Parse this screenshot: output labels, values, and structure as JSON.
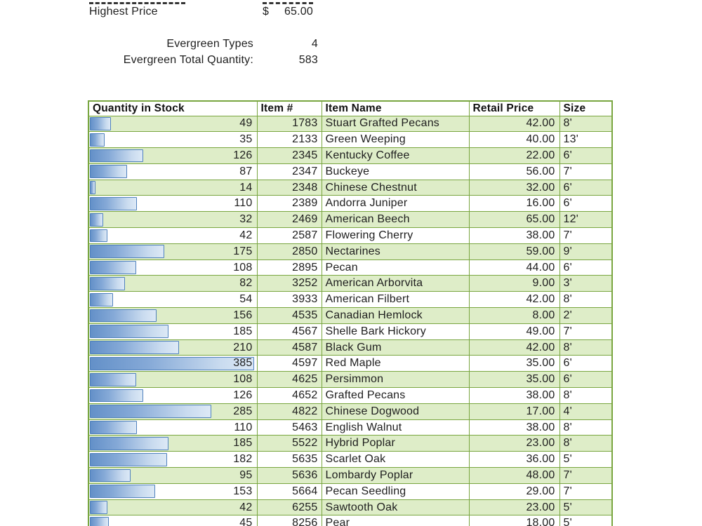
{
  "summary": {
    "highest_price_label": "Highest Price",
    "highest_price_currency": "$",
    "highest_price_value": "65.00",
    "evergreen_types_label": "Evergreen Types",
    "evergreen_types_value": "4",
    "evergreen_total_label": "Evergreen Total Quantity:",
    "evergreen_total_value": "583"
  },
  "colors": {
    "grid_green": "#79A640",
    "row_green": "#DEEDC8",
    "bar_border_blue": "#4F81BD",
    "bar_fill_blue": "#6390C8"
  },
  "table": {
    "columns": [
      "Quantity in Stock",
      "Item #",
      "Item Name",
      "Retail Price",
      "Size"
    ],
    "bar_max": 385,
    "rows": [
      {
        "qty": 49,
        "item": "1783",
        "name": "Stuart Grafted Pecans",
        "price": "42.00",
        "size": "8'"
      },
      {
        "qty": 35,
        "item": "2133",
        "name": "Green Weeping",
        "price": "40.00",
        "size": "13'"
      },
      {
        "qty": 126,
        "item": "2345",
        "name": "Kentucky Coffee",
        "price": "22.00",
        "size": "6'"
      },
      {
        "qty": 87,
        "item": "2347",
        "name": "Buckeye",
        "price": "56.00",
        "size": "7'"
      },
      {
        "qty": 14,
        "item": "2348",
        "name": "Chinese Chestnut",
        "price": "32.00",
        "size": "6'"
      },
      {
        "qty": 110,
        "item": "2389",
        "name": "Andorra Juniper",
        "price": "16.00",
        "size": "6'"
      },
      {
        "qty": 32,
        "item": "2469",
        "name": "American Beech",
        "price": "65.00",
        "size": "12'"
      },
      {
        "qty": 42,
        "item": "2587",
        "name": "Flowering Cherry",
        "price": "38.00",
        "size": "7'"
      },
      {
        "qty": 175,
        "item": "2850",
        "name": "Nectarines",
        "price": "59.00",
        "size": "9'"
      },
      {
        "qty": 108,
        "item": "2895",
        "name": "Pecan",
        "price": "44.00",
        "size": "6'"
      },
      {
        "qty": 82,
        "item": "3252",
        "name": "American Arborvita",
        "price": "9.00",
        "size": "3'"
      },
      {
        "qty": 54,
        "item": "3933",
        "name": "American Filbert",
        "price": "42.00",
        "size": "8'"
      },
      {
        "qty": 156,
        "item": "4535",
        "name": "Canadian Hemlock",
        "price": "8.00",
        "size": "2'"
      },
      {
        "qty": 185,
        "item": "4567",
        "name": "Shelle Bark Hickory",
        "price": "49.00",
        "size": "7'"
      },
      {
        "qty": 210,
        "item": "4587",
        "name": "Black Gum",
        "price": "42.00",
        "size": "8'"
      },
      {
        "qty": 385,
        "item": "4597",
        "name": "Red Maple",
        "price": "35.00",
        "size": "6'"
      },
      {
        "qty": 108,
        "item": "4625",
        "name": "Persimmon",
        "price": "35.00",
        "size": "6'"
      },
      {
        "qty": 126,
        "item": "4652",
        "name": "Grafted Pecans",
        "price": "38.00",
        "size": "8'"
      },
      {
        "qty": 285,
        "item": "4822",
        "name": "Chinese Dogwood",
        "price": "17.00",
        "size": "4'"
      },
      {
        "qty": 110,
        "item": "5463",
        "name": "English Walnut",
        "price": "38.00",
        "size": "8'"
      },
      {
        "qty": 185,
        "item": "5522",
        "name": "Hybrid Poplar",
        "price": "23.00",
        "size": "8'"
      },
      {
        "qty": 182,
        "item": "5635",
        "name": "Scarlet Oak",
        "price": "36.00",
        "size": "5'"
      },
      {
        "qty": 95,
        "item": "5636",
        "name": "Lombardy Poplar",
        "price": "48.00",
        "size": "7'"
      },
      {
        "qty": 153,
        "item": "5664",
        "name": "Pecan Seedling",
        "price": "29.00",
        "size": "7'"
      },
      {
        "qty": 42,
        "item": "6255",
        "name": "Sawtooth Oak",
        "price": "23.00",
        "size": "5'"
      },
      {
        "qty": 45,
        "item": "8256",
        "name": "Pear",
        "price": "18.00",
        "size": "5'"
      }
    ]
  }
}
